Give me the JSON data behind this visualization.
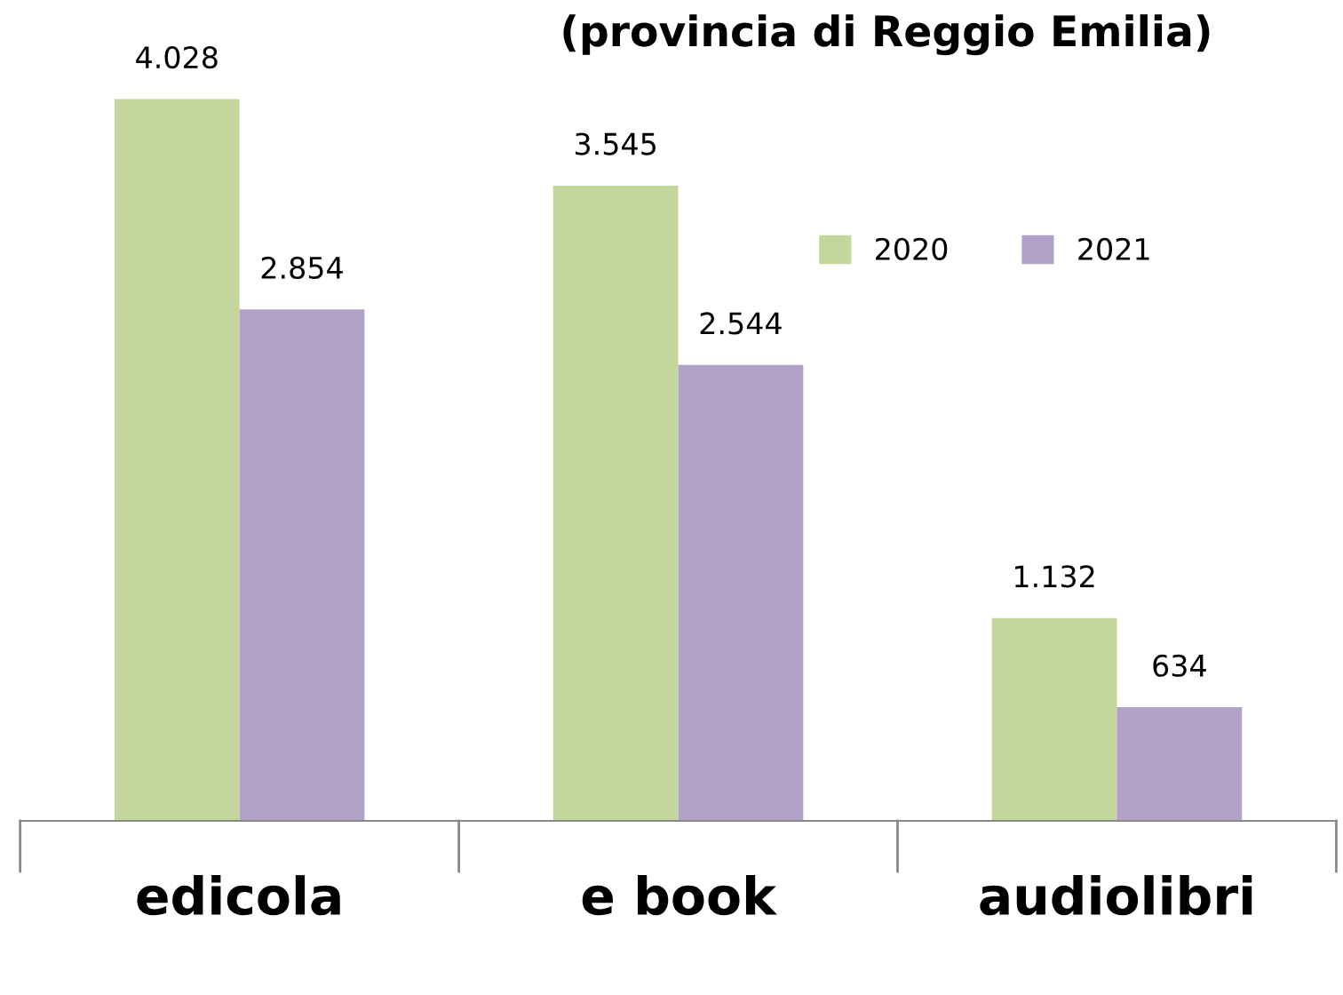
{
  "chart_data": {
    "type": "bar",
    "title": "(provincia di Reggio Emilia)",
    "categories": [
      "edicola",
      "e book",
      "audiolibri"
    ],
    "series": [
      {
        "name": "2020",
        "color": "#c3d69b",
        "values": [
          4028,
          3545,
          1132
        ],
        "value_labels": [
          "4.028",
          "3.545",
          "1.132"
        ]
      },
      {
        "name": "2021",
        "color": "#b3a2c7",
        "values": [
          2854,
          2544,
          634
        ],
        "value_labels": [
          "2.854",
          "2.544",
          "634"
        ]
      }
    ],
    "legend": "top right",
    "grid": false
  }
}
